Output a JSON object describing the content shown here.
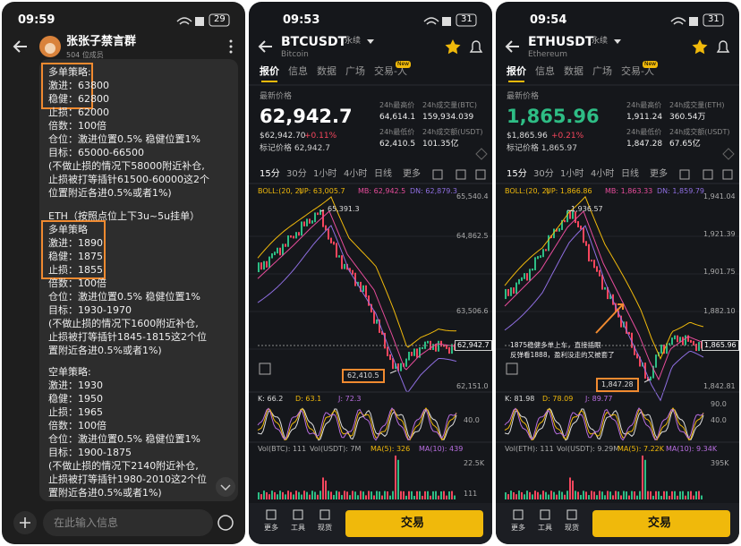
{
  "chat": {
    "status": {
      "time": "09:59",
      "battery": "29"
    },
    "group": {
      "name": "张张子禁言群",
      "members": "504 位成员"
    },
    "paragraphs": [
      [
        "多单策略:",
        "激进：63800",
        "稳健：62800",
        "止损：62000",
        "倍数：100倍",
        "仓位：激进位置0.5%   稳健位置1%",
        "目标：65000-66500",
        "(不做止损的情况下58000附近补仓,",
        "止损被打等插针61500-60000这2个",
        "位置附近各进0.5%或者1%)"
      ],
      [
        "ETH（按照点位上下3u~5u挂单）",
        "多单策略",
        "激进：1890",
        "稳健：1875",
        "止损：1855",
        "倍数：100倍",
        "仓位：激进位置0.5%   稳健位置1%",
        "目标：1930-1970",
        "(不做止损的情况下1600附近补仓,",
        "止损被打等插针1845-1815这2个位",
        "置附近各进0.5%或者1%)"
      ],
      [
        "空单策略:",
        "激进：1930",
        "稳健：1950",
        "止损：1965",
        "倍数：100倍",
        "仓位：激进位置0.5%   稳健位置1%",
        "目标：1900-1875",
        "(不做止损的情况下2140附近补仓,",
        "止损被打等插针1980-2010这2个位",
        "置附近各进0.5%或者1%)"
      ]
    ],
    "input_placeholder": "在此输入信息"
  },
  "btc": {
    "status": {
      "time": "09:53",
      "battery": "31"
    },
    "symbol": "BTCUSDT",
    "contract": "永续",
    "name": "Bitcoin",
    "tabs": [
      "报价",
      "信息",
      "数据",
      "广场",
      "交易-人"
    ],
    "new_badge": "New",
    "price_label": "最新价格",
    "price": "62,942.7",
    "usd_price": "$62,942.70",
    "change": "+0.11%",
    "mark_price": "标记价格 62,942.7",
    "stats": [
      {
        "label": "24h最高价",
        "value": "64,614.1"
      },
      {
        "label": "24h成交量(BTC)",
        "value": "159,934.039"
      },
      {
        "label": "24h最低价",
        "value": "62,410.5"
      },
      {
        "label": "24h成交额(USDT)",
        "value": "101.35亿"
      }
    ],
    "intervals": [
      "15分",
      "30分",
      "1小时",
      "4小时",
      "日线",
      "更多"
    ],
    "boll": [
      "BOLL:(20, 2)",
      "UP: 63,005.7",
      "MB: 62,942.5",
      "DN: 62,879.3"
    ],
    "price_axis": [
      "65,540.4",
      "64,862.5",
      "63,506.6",
      "62,151.0"
    ],
    "current_price_tag": "62,942.7",
    "annotations": [
      "65,391.3",
      "62,410.5"
    ],
    "kdj": [
      "K: 66.2",
      "D: 63.1",
      "J: 72.3"
    ],
    "kdj_axis": [
      "40.0"
    ],
    "vol": [
      "Vol(BTC): 111",
      "Vol(USDT): 7M",
      "MA(5): 326",
      "MA(10): 439"
    ],
    "vol_axis": [
      "22.5K",
      "111"
    ],
    "nav": [
      "更多",
      "工具",
      "现货"
    ],
    "trade_button": "交易"
  },
  "eth": {
    "status": {
      "time": "09:54",
      "battery": "31"
    },
    "symbol": "ETHUSDT",
    "contract": "永续",
    "name": "Ethereum",
    "tabs": [
      "报价",
      "信息",
      "数据",
      "广场",
      "交易-人"
    ],
    "new_badge": "New",
    "price_label": "最新价格",
    "price": "1,865.96",
    "usd_price": "$1,865.96",
    "change": "+0.21%",
    "mark_price": "标记价格 1,865.97",
    "stats": [
      {
        "label": "24h最高价",
        "value": "1,911.24"
      },
      {
        "label": "24h成交量(ETH)",
        "value": "360.54万"
      },
      {
        "label": "24h最低价",
        "value": "1,847.28"
      },
      {
        "label": "24h成交额(USDT)",
        "value": "67.65亿"
      }
    ],
    "intervals": [
      "15分",
      "30分",
      "1小时",
      "4小时",
      "日线",
      "更多"
    ],
    "boll": [
      "BOLL:(20, 2)",
      "UP: 1,866.86",
      "MB: 1,863.33",
      "DN: 1,859.79"
    ],
    "price_axis": [
      "1,941.04",
      "1,921.39",
      "1,901.75",
      "1,882.10",
      "1,842.81"
    ],
    "current_price_tag": "1,865.96",
    "annotations": [
      "1,936.57",
      "1,847.28"
    ],
    "note": [
      "1875稳健多单上车，直接插眼",
      "反弹看1888，盈利没走的又被套了"
    ],
    "kdj": [
      "K: 81.98",
      "D: 78.09",
      "J: 89.77"
    ],
    "kdj_axis": [
      "90.0",
      "40.0"
    ],
    "vol": [
      "Vol(ETH): 111",
      "Vol(USDT): 9.29M",
      "MA(5): 7.22K",
      "MA(10): 9.34K"
    ],
    "vol_axis": [
      "395K"
    ],
    "nav": [
      "更多",
      "工具",
      "现货"
    ],
    "trade_button": "交易"
  }
}
